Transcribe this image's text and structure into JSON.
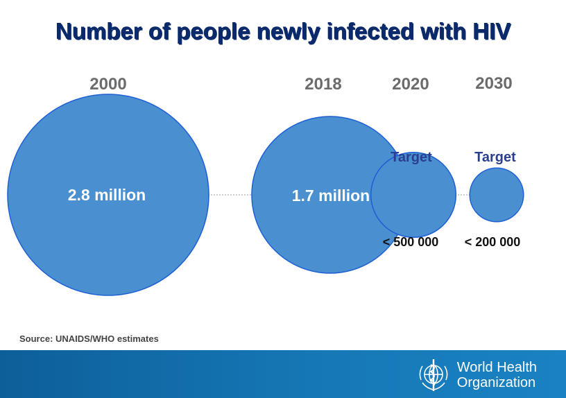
{
  "chart_data": {
    "type": "bubble",
    "title": "Number of people newly infected with HIV",
    "points": [
      {
        "year": "2000",
        "label": "2.8 million",
        "value": 2800000,
        "target_label": ""
      },
      {
        "year": "2018",
        "label": "1.7 million",
        "value": 1700000,
        "target_label": ""
      },
      {
        "year": "2020",
        "label": "< 500 000",
        "value": 500000,
        "target_label": "Target"
      },
      {
        "year": "2030",
        "label": "< 200 000",
        "value": 200000,
        "target_label": "Target"
      }
    ],
    "source": "Source: UNAIDS/WHO  estimates"
  },
  "colors": {
    "bubble_fill": "#4a8fcf",
    "bubble_stroke": "#1c5fd6",
    "title": "#0b2a6b",
    "footer": "#1677b6"
  },
  "footer": {
    "organization": "World Health\nOrganization",
    "emblem_icon": "who-emblem-icon"
  }
}
